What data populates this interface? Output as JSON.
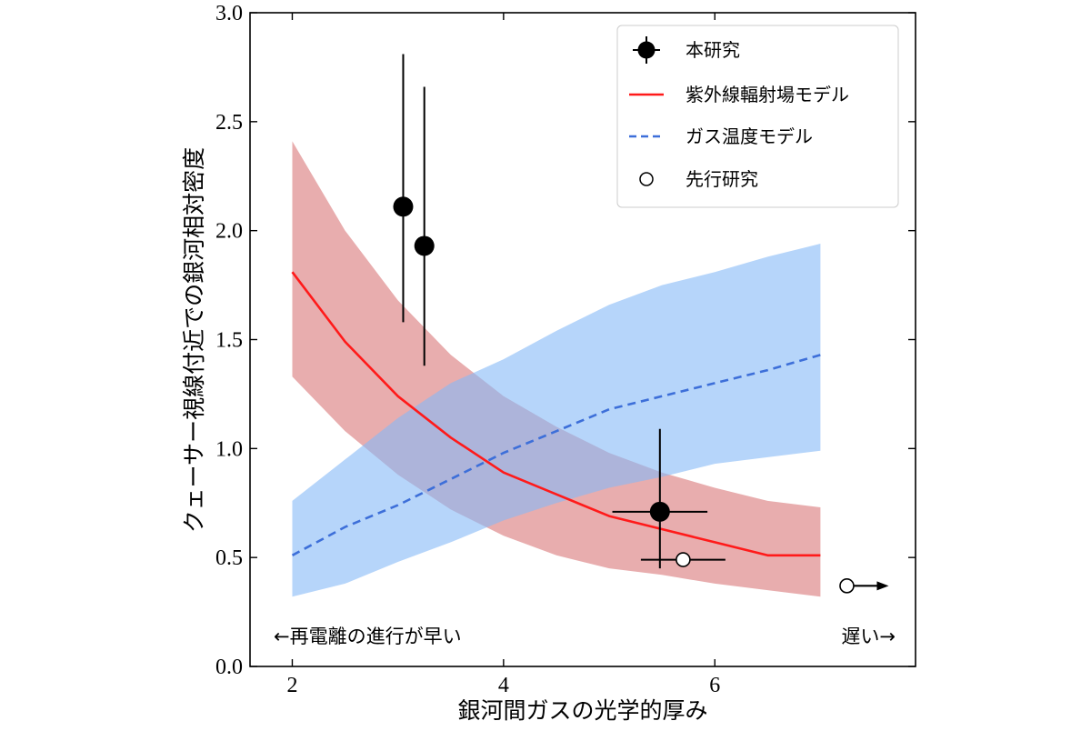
{
  "chart_data": {
    "type": "line",
    "xlabel": "銀河間ガスの光学的厚み",
    "ylabel": "クェーサー視線付近での銀河相対密度",
    "xlim": [
      1.6,
      7.9
    ],
    "ylim": [
      0.0,
      3.0
    ],
    "xticks": [
      2,
      4,
      6
    ],
    "yticks": [
      0.0,
      0.5,
      1.0,
      1.5,
      2.0,
      2.5,
      3.0
    ],
    "grid": false,
    "legend_placement": "top-right",
    "legend": [
      {
        "label": "本研究",
        "marker": "filled-circle-errorbar"
      },
      {
        "label": "紫外線輻射場モデル",
        "marker": "solid-line"
      },
      {
        "label": "ガス温度モデル",
        "marker": "dashed-line"
      },
      {
        "label": "先行研究",
        "marker": "open-circle"
      }
    ],
    "series": [
      {
        "name": "紫外線輻射場モデル",
        "style": "solid",
        "color": "#ff1a1a",
        "band_color": "#d66a6c",
        "x": [
          2.0,
          2.5,
          3.0,
          3.5,
          4.0,
          4.5,
          5.0,
          5.5,
          6.0,
          6.5,
          7.0
        ],
        "y": [
          1.81,
          1.49,
          1.24,
          1.05,
          0.89,
          0.79,
          0.69,
          0.63,
          0.57,
          0.51,
          0.51
        ],
        "upper": [
          2.41,
          2.0,
          1.68,
          1.43,
          1.24,
          1.1,
          0.98,
          0.89,
          0.82,
          0.76,
          0.73
        ],
        "lower": [
          1.33,
          1.08,
          0.88,
          0.72,
          0.6,
          0.51,
          0.45,
          0.42,
          0.38,
          0.35,
          0.32
        ]
      },
      {
        "name": "ガス温度モデル",
        "style": "dashed",
        "color": "#3d6fd9",
        "band_color": "#86b9f6",
        "x": [
          2.0,
          2.5,
          3.0,
          3.5,
          4.0,
          4.5,
          5.0,
          5.5,
          6.0,
          6.5,
          7.0
        ],
        "y": [
          0.51,
          0.64,
          0.74,
          0.86,
          0.98,
          1.08,
          1.18,
          1.24,
          1.3,
          1.36,
          1.43
        ],
        "upper": [
          0.76,
          0.95,
          1.14,
          1.3,
          1.41,
          1.54,
          1.66,
          1.75,
          1.81,
          1.88,
          1.94
        ],
        "lower": [
          0.32,
          0.38,
          0.48,
          0.57,
          0.67,
          0.75,
          0.82,
          0.87,
          0.93,
          0.96,
          0.99
        ]
      }
    ],
    "points": {
      "this_study": {
        "name": "本研究",
        "color": "#000000",
        "data": [
          {
            "x": 3.05,
            "y": 2.11,
            "y_err_low": 0.53,
            "y_err_high": 0.7,
            "x_err": 0
          },
          {
            "x": 3.25,
            "y": 1.93,
            "y_err_low": 0.55,
            "y_err_high": 0.73,
            "x_err": 0
          },
          {
            "x": 5.48,
            "y": 0.71,
            "y_err_low": 0.26,
            "y_err_high": 0.38,
            "x_err": 0.45
          }
        ]
      },
      "previous_study": {
        "name": "先行研究",
        "data": [
          {
            "x": 5.7,
            "y": 0.49,
            "x_err": 0.4,
            "y_err_low": 0,
            "y_err_high": 0
          },
          {
            "x": 7.25,
            "y": 0.37,
            "lower_limit_arrow": true
          }
        ]
      }
    },
    "annotations": {
      "left": "←再電離の進行が早い",
      "right": "遅い→"
    }
  }
}
